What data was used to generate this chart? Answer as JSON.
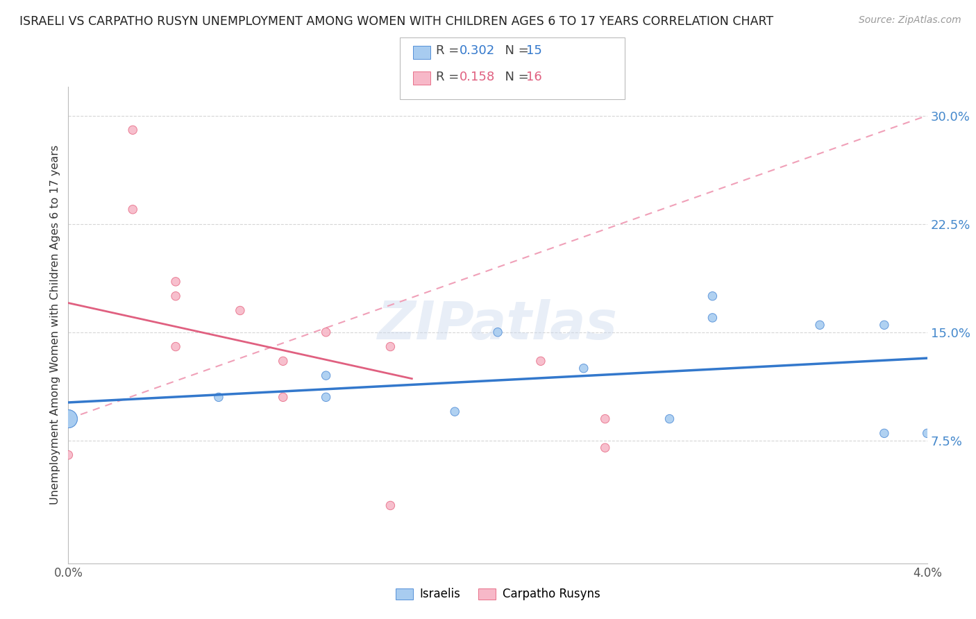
{
  "title": "ISRAELI VS CARPATHO RUSYN UNEMPLOYMENT AMONG WOMEN WITH CHILDREN AGES 6 TO 17 YEARS CORRELATION CHART",
  "source_text": "Source: ZipAtlas.com",
  "ylabel": "Unemployment Among Women with Children Ages 6 to 17 years",
  "xlim": [
    0.0,
    0.04
  ],
  "ylim": [
    -0.01,
    0.32
  ],
  "ytick_labels": [
    "7.5%",
    "15.0%",
    "22.5%",
    "30.0%"
  ],
  "ytick_values": [
    0.075,
    0.15,
    0.225,
    0.3
  ],
  "xtick_values": [
    0.0,
    0.01,
    0.02,
    0.03,
    0.04
  ],
  "xtick_labels": [
    "0.0%",
    "",
    "",
    "",
    "4.0%"
  ],
  "israeli_color": "#A8CCF0",
  "carpatho_color": "#F7B8C8",
  "israeli_edge_color": "#5590D8",
  "carpatho_edge_color": "#E8708A",
  "israeli_line_color": "#3378CC",
  "carpatho_line_color": "#E06080",
  "carpatho_dashed_color": "#F0A0B8",
  "R_israeli": "0.302",
  "N_israeli": "15",
  "R_carpatho": "0.158",
  "N_carpatho": "16",
  "watermark": "ZIPatlas",
  "israeli_x": [
    0.0,
    0.0,
    0.007,
    0.012,
    0.012,
    0.018,
    0.02,
    0.024,
    0.028,
    0.03,
    0.03,
    0.035,
    0.038,
    0.038,
    0.04
  ],
  "israeli_y": [
    0.09,
    0.09,
    0.105,
    0.105,
    0.12,
    0.095,
    0.15,
    0.125,
    0.09,
    0.175,
    0.16,
    0.155,
    0.08,
    0.155,
    0.08
  ],
  "israeli_sizes": [
    350,
    350,
    80,
    80,
    80,
    80,
    80,
    80,
    80,
    80,
    80,
    80,
    80,
    80,
    80
  ],
  "carpatho_x": [
    0.0,
    0.0,
    0.003,
    0.003,
    0.005,
    0.005,
    0.005,
    0.008,
    0.01,
    0.01,
    0.012,
    0.015,
    0.015,
    0.022,
    0.025,
    0.025
  ],
  "carpatho_y": [
    0.09,
    0.065,
    0.29,
    0.235,
    0.185,
    0.175,
    0.14,
    0.165,
    0.13,
    0.105,
    0.15,
    0.14,
    0.03,
    0.13,
    0.09,
    0.07
  ],
  "carpatho_sizes": [
    80,
    80,
    80,
    80,
    80,
    80,
    80,
    80,
    80,
    80,
    80,
    80,
    80,
    80,
    80,
    80
  ],
  "background_color": "#FFFFFF",
  "grid_color": "#CCCCCC",
  "title_color": "#222222",
  "axis_label_color": "#333333",
  "right_ytick_color": "#4488CC",
  "legend_r_color": "#3378CC",
  "legend_r2_color": "#E06080"
}
